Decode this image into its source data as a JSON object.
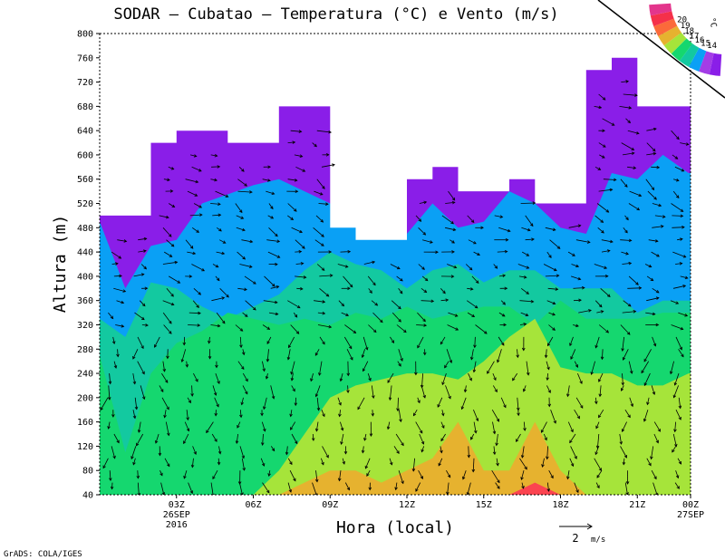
{
  "chart_data": {
    "type": "heatmap",
    "title": "SODAR – Cubatao – Temperatura (°C) e Vento (m/s)",
    "xlabel": "Hora (local)",
    "ylabel": "Altura (m)",
    "ylim": [
      40,
      800
    ],
    "yticks": [
      "40",
      "80",
      "120",
      "160",
      "200",
      "240",
      "280",
      "320",
      "360",
      "400",
      "440",
      "480",
      "520",
      "560",
      "600",
      "640",
      "680",
      "720",
      "760",
      "800"
    ],
    "xlim": [
      0,
      23
    ],
    "xticks": [
      {
        "hour": 3,
        "label": "03Z",
        "date": "26SEP",
        "year": "2016"
      },
      {
        "hour": 6,
        "label": "06Z"
      },
      {
        "hour": 9,
        "label": "09Z"
      },
      {
        "hour": 12,
        "label": "12Z"
      },
      {
        "hour": 15,
        "label": "15Z"
      },
      {
        "hour": 18,
        "label": "18Z"
      },
      {
        "hour": 21,
        "label": "21Z"
      },
      {
        "hour": 24,
        "label": "00Z",
        "date": "27SEP"
      }
    ],
    "colorbar": {
      "unit": "°C",
      "levels": [
        "14",
        "15",
        "16",
        "17",
        "18",
        "19",
        "20"
      ],
      "colors": [
        "#8a1ee8",
        "#a33de6",
        "#0aa0f5",
        "#13c9a0",
        "#15d76f",
        "#a6e43a",
        "#e6b22f",
        "#fb6a3a",
        "#f5304a",
        "#e3358c"
      ]
    },
    "temperature_bands": [
      {
        "name": "lt-14",
        "color": "#8a1ee8"
      },
      {
        "name": "14-15",
        "color": "#0aa0f5"
      },
      {
        "name": "15-16",
        "color": "#13c9a0"
      },
      {
        "name": "16-17",
        "color": "#15d76f"
      },
      {
        "name": "17-18",
        "color": "#a6e43a"
      },
      {
        "name": "18-19",
        "color": "#e6b22f"
      },
      {
        "name": "19-20",
        "color": "#fb4450"
      },
      {
        "name": "gt-20",
        "color": "#e3358c"
      }
    ],
    "max_height_profile": {
      "hour": [
        0,
        1,
        2,
        3,
        4,
        5,
        6,
        7,
        8,
        9,
        10,
        11,
        12,
        13,
        14,
        15,
        16,
        17,
        18,
        19,
        20,
        21,
        22,
        23
      ],
      "top_m": [
        500,
        500,
        620,
        640,
        640,
        620,
        620,
        680,
        680,
        480,
        460,
        460,
        560,
        580,
        540,
        540,
        560,
        520,
        520,
        740,
        760,
        680,
        680,
        680
      ]
    },
    "wind_reference": {
      "value": "2",
      "unit": "m/s"
    }
  },
  "footer": {
    "credit": "GrADS: COLA/IGES"
  }
}
